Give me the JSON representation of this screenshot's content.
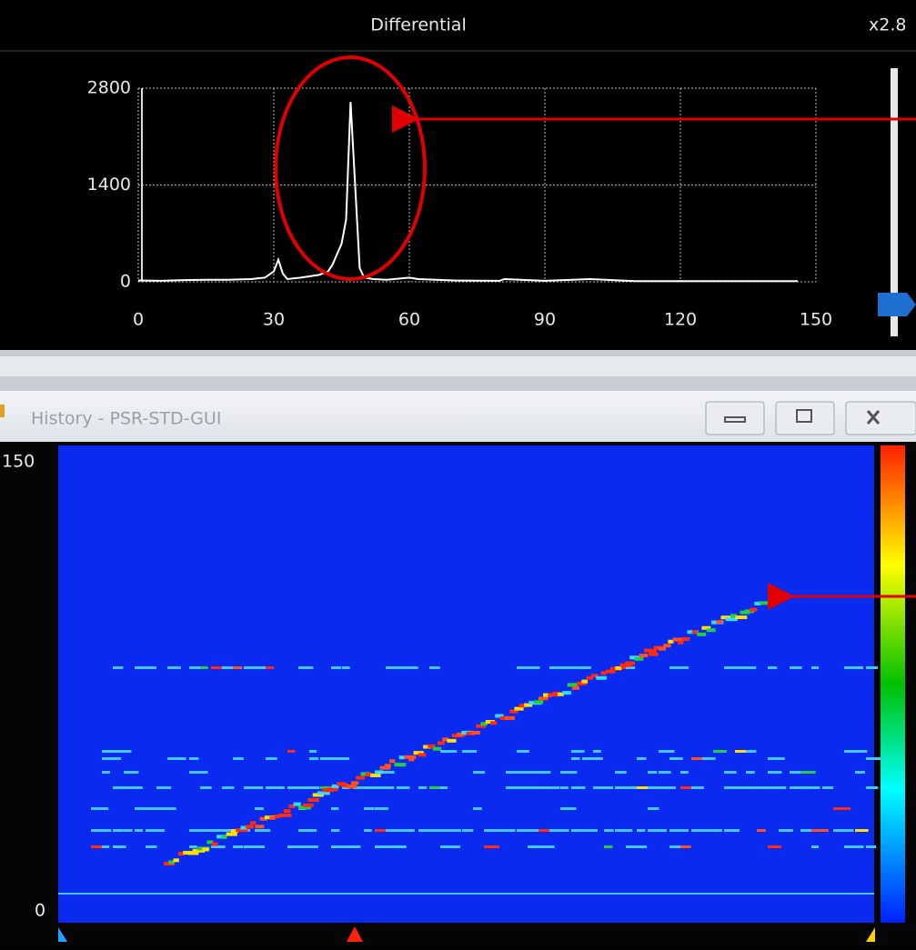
{
  "chart_data": {
    "type": "line",
    "title": "Differential",
    "zoom_label": "x2.8",
    "x": [
      0,
      5,
      10,
      15,
      20,
      25,
      28,
      30,
      31,
      32,
      33,
      36,
      40,
      42,
      43,
      44,
      45,
      46,
      47,
      48,
      49,
      50,
      52,
      55,
      60,
      62,
      70,
      80,
      81,
      90,
      100,
      110,
      120,
      130,
      140,
      146
    ],
    "values": [
      20,
      15,
      25,
      30,
      30,
      40,
      60,
      150,
      320,
      120,
      40,
      60,
      100,
      150,
      250,
      400,
      550,
      900,
      2600,
      1400,
      200,
      60,
      40,
      30,
      60,
      40,
      20,
      15,
      40,
      15,
      40,
      10,
      10,
      10,
      10,
      10
    ],
    "color": "#ffffff",
    "xlim": [
      0,
      150
    ],
    "ylim": [
      0,
      2800
    ],
    "xticks": [
      0,
      30,
      60,
      90,
      120,
      150
    ],
    "yticks": [
      0,
      1400,
      2800
    ],
    "grid": true
  },
  "history": {
    "title": "History - PSR-STD-GUI",
    "y_top": "150",
    "y_bottom": "0"
  }
}
